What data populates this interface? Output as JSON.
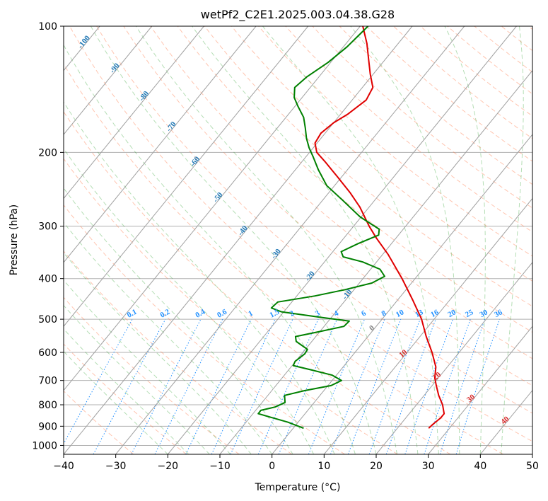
{
  "chart_data": {
    "type": "line",
    "title": "wetPf2_C2E1.2025.003.04.38.G28",
    "xlabel": "Temperature (°C)",
    "ylabel": "Pressure (hPa)",
    "xlim": [
      -40,
      50
    ],
    "ylim": [
      1050,
      100
    ],
    "y_scale": "log",
    "grid": true,
    "x_ticks": [
      -40,
      -30,
      -20,
      -10,
      0,
      10,
      20,
      30,
      40,
      50
    ],
    "y_ticks": [
      1000,
      900,
      800,
      700,
      600,
      500,
      400,
      300,
      200,
      100
    ],
    "colors": {
      "temperature": "#e00000",
      "dewpoint": "#008000",
      "isotherm": "#a0a0a0",
      "dry_adiabat": "#ff7f50",
      "moist_adiabat": "#2ca02c",
      "mixing_ratio": "#1f8fff",
      "frame": "#000000"
    },
    "series": [
      {
        "key": "temperature",
        "points": [
          {
            "p": 910,
            "t": 26.0
          },
          {
            "p": 890,
            "t": 26.2
          },
          {
            "p": 860,
            "t": 26.7
          },
          {
            "p": 840,
            "t": 26.7
          },
          {
            "p": 800,
            "t": 25.0
          },
          {
            "p": 760,
            "t": 22.8
          },
          {
            "p": 720,
            "t": 20.8
          },
          {
            "p": 690,
            "t": 19.3
          },
          {
            "p": 650,
            "t": 17.8
          },
          {
            "p": 600,
            "t": 14.8
          },
          {
            "p": 550,
            "t": 11.2
          },
          {
            "p": 500,
            "t": 7.6
          },
          {
            "p": 450,
            "t": 2.9
          },
          {
            "p": 400,
            "t": -2.5
          },
          {
            "p": 350,
            "t": -9.0
          },
          {
            "p": 320,
            "t": -13.8
          },
          {
            "p": 300,
            "t": -17.0
          },
          {
            "p": 270,
            "t": -21.8
          },
          {
            "p": 250,
            "t": -25.8
          },
          {
            "p": 230,
            "t": -30.5
          },
          {
            "p": 210,
            "t": -35.7
          },
          {
            "p": 200,
            "t": -38.6
          },
          {
            "p": 190,
            "t": -40.4
          },
          {
            "p": 180,
            "t": -40.8
          },
          {
            "p": 170,
            "t": -40.0
          },
          {
            "p": 162,
            "t": -38.6
          },
          {
            "p": 150,
            "t": -37.3
          },
          {
            "p": 140,
            "t": -38.0
          },
          {
            "p": 130,
            "t": -40.6
          },
          {
            "p": 120,
            "t": -43.2
          },
          {
            "p": 110,
            "t": -46.0
          },
          {
            "p": 100,
            "t": -49.5
          }
        ]
      },
      {
        "key": "dewpoint",
        "points": [
          {
            "p": 910,
            "t": 2.0
          },
          {
            "p": 880,
            "t": -2.0
          },
          {
            "p": 860,
            "t": -5.5
          },
          {
            "p": 840,
            "t": -9.0
          },
          {
            "p": 825,
            "t": -9.0
          },
          {
            "p": 810,
            "t": -6.8
          },
          {
            "p": 790,
            "t": -5.6
          },
          {
            "p": 760,
            "t": -6.8
          },
          {
            "p": 740,
            "t": -3.7
          },
          {
            "p": 720,
            "t": 0.6
          },
          {
            "p": 700,
            "t": 1.8
          },
          {
            "p": 680,
            "t": -0.8
          },
          {
            "p": 660,
            "t": -5.8
          },
          {
            "p": 645,
            "t": -9.8
          },
          {
            "p": 630,
            "t": -10.1
          },
          {
            "p": 605,
            "t": -9.4
          },
          {
            "p": 590,
            "t": -9.6
          },
          {
            "p": 565,
            "t": -13.0
          },
          {
            "p": 550,
            "t": -13.9
          },
          {
            "p": 535,
            "t": -10.0
          },
          {
            "p": 520,
            "t": -6.2
          },
          {
            "p": 505,
            "t": -6.0
          },
          {
            "p": 495,
            "t": -12.0
          },
          {
            "p": 480,
            "t": -20.5
          },
          {
            "p": 470,
            "t": -23.0
          },
          {
            "p": 455,
            "t": -22.7
          },
          {
            "p": 440,
            "t": -16.5
          },
          {
            "p": 425,
            "t": -11.7
          },
          {
            "p": 410,
            "t": -7.6
          },
          {
            "p": 395,
            "t": -6.2
          },
          {
            "p": 380,
            "t": -8.2
          },
          {
            "p": 365,
            "t": -12.7
          },
          {
            "p": 355,
            "t": -17.2
          },
          {
            "p": 345,
            "t": -18.4
          },
          {
            "p": 330,
            "t": -16.4
          },
          {
            "p": 315,
            "t": -13.8
          },
          {
            "p": 305,
            "t": -14.6
          },
          {
            "p": 285,
            "t": -20.2
          },
          {
            "p": 260,
            "t": -26.2
          },
          {
            "p": 240,
            "t": -31.5
          },
          {
            "p": 220,
            "t": -35.6
          },
          {
            "p": 205,
            "t": -38.6
          },
          {
            "p": 195,
            "t": -40.8
          },
          {
            "p": 185,
            "t": -42.8
          },
          {
            "p": 175,
            "t": -44.6
          },
          {
            "p": 165,
            "t": -46.6
          },
          {
            "p": 155,
            "t": -49.5
          },
          {
            "p": 148,
            "t": -51.5
          },
          {
            "p": 140,
            "t": -53.0
          },
          {
            "p": 132,
            "t": -52.3
          },
          {
            "p": 122,
            "t": -50.5
          },
          {
            "p": 112,
            "t": -49.3
          },
          {
            "p": 100,
            "t": -48.5
          }
        ]
      }
    ],
    "dry_adiabat_labels": [
      "-100",
      "-90",
      "-80",
      "-70",
      "-60",
      "-50",
      "-40",
      "-30",
      "-20",
      "-10"
    ],
    "mixing_ratio_labels": [
      "0.1",
      "0.2",
      "0.4",
      "0.6",
      "1",
      "1.5",
      "2",
      "3",
      "4",
      "6",
      "8",
      "10",
      "13",
      "16",
      "20",
      "25",
      "30",
      "36"
    ],
    "moist_adiabat_labels": [
      "0",
      "10",
      "20",
      "30",
      "40"
    ]
  }
}
